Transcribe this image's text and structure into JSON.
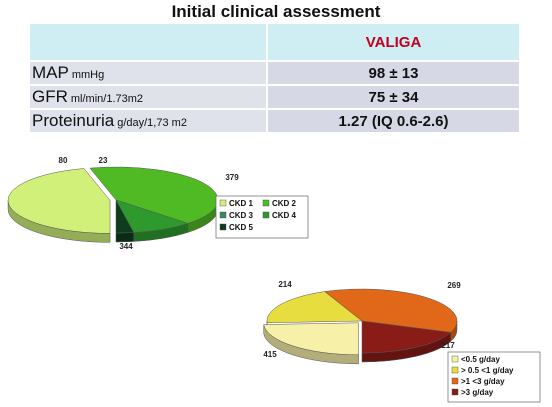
{
  "header": {
    "title": "Initial clinical assessment"
  },
  "table": {
    "column_header": "VALIGA",
    "rows": [
      {
        "label": "MAP",
        "unit": "mmHg",
        "value": "98 ± 13"
      },
      {
        "label": "GFR",
        "unit": "ml/min/1.73m2",
        "value": "75 ± 34"
      },
      {
        "label": "Proteinuria",
        "unit": "g/day/1,73 m2",
        "value": "1.27 (IQ 0.6-2.6)"
      }
    ]
  },
  "chart_data": [
    {
      "type": "pie",
      "categories": [
        "CKD 1",
        "CKD 2",
        "CKD 3",
        "CKD 4",
        "CKD 5"
      ],
      "values": [
        379,
        344,
        0,
        80,
        23
      ],
      "colors": [
        "#d0f07a",
        "#4fba23",
        "#3b8a5e",
        "#2e9a2e",
        "#0f3d1c"
      ],
      "legend_position": "bottom-right"
    },
    {
      "type": "pie",
      "categories": [
        "<0.5 g/day",
        "> 0.5 <1 g/day",
        ">1 <3 g/day",
        ">3 g/day"
      ],
      "values": [
        269,
        217,
        415,
        214
      ],
      "colors": [
        "#f7f0a8",
        "#e8dd3f",
        "#e06818",
        "#8a1c18"
      ],
      "legend_position": "bottom-right"
    }
  ]
}
